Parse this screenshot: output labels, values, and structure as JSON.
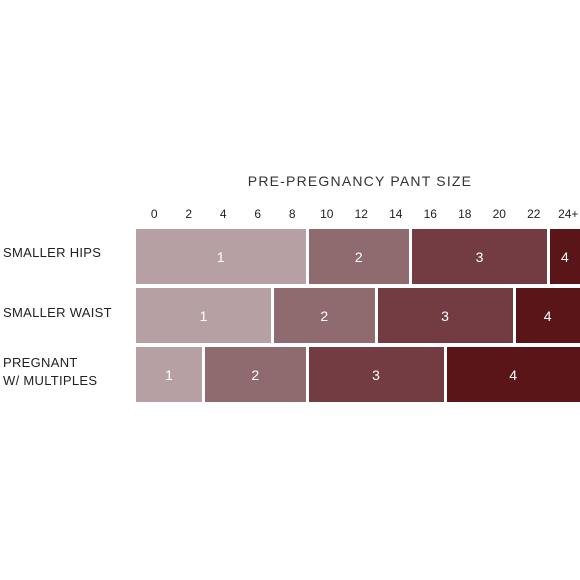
{
  "chart_data": {
    "type": "bar",
    "title": "PRE-PREGNANCY PANT SIZE",
    "ticks": [
      "0",
      "2",
      "4",
      "6",
      "8",
      "10",
      "12",
      "14",
      "16",
      "18",
      "20",
      "22",
      "24+"
    ],
    "rows": [
      {
        "label": "SMALLER HIPS",
        "segments": [
          {
            "label": "1",
            "from": 0,
            "to": 8
          },
          {
            "label": "2",
            "from": 10,
            "to": 14
          },
          {
            "label": "3",
            "from": 16,
            "to": 22
          },
          {
            "label": "4",
            "from": 24,
            "to": 24
          }
        ]
      },
      {
        "label": "SMALLER WAIST",
        "segments": [
          {
            "label": "1",
            "from": 0,
            "to": 6
          },
          {
            "label": "2",
            "from": 8,
            "to": 12
          },
          {
            "label": "3",
            "from": 14,
            "to": 20
          },
          {
            "label": "4",
            "from": 22,
            "to": 24
          }
        ]
      },
      {
        "label": "PREGNANT\nW/ MULTIPLES",
        "segments": [
          {
            "label": "1",
            "from": 0,
            "to": 2
          },
          {
            "label": "2",
            "from": 4,
            "to": 8
          },
          {
            "label": "3",
            "from": 10,
            "to": 16
          },
          {
            "label": "4",
            "from": 18,
            "to": 24
          }
        ]
      }
    ],
    "colors": {
      "1": "#b7a0a3",
      "2": "#8f6a6e",
      "3": "#723c42",
      "4": "#5a1519"
    }
  }
}
